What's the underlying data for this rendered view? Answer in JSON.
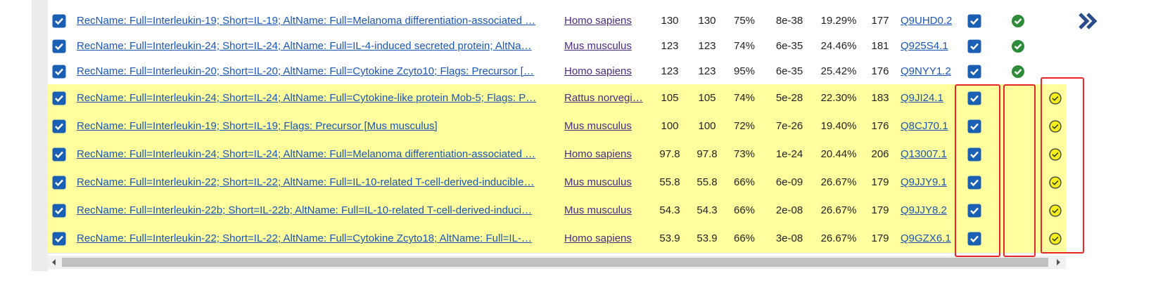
{
  "table": {
    "rows": [
      {
        "description": "RecName: Full=Interleukin-19; Short=IL-19; AltName: Full=Melanoma differentiation-associated …",
        "species": "Homo sapiens",
        "max_score": "130",
        "total_score": "130",
        "query_cover": "75%",
        "e_value": "8e-38",
        "per_ident": "19.29%",
        "acc_len": "177",
        "accession": "Q9UHD0.2",
        "highlighted": false
      },
      {
        "description": "RecName: Full=Interleukin-24; Short=IL-24; AltName: Full=IL-4-induced secreted protein; AltNa…",
        "species": "Mus musculus",
        "max_score": "123",
        "total_score": "123",
        "query_cover": "74%",
        "e_value": "6e-35",
        "per_ident": "24.46%",
        "acc_len": "181",
        "accession": "Q925S4.1",
        "highlighted": false
      },
      {
        "description": "RecName: Full=Interleukin-20; Short=IL-20; AltName: Full=Cytokine Zcyto10; Flags: Precursor […",
        "species": "Homo sapiens",
        "max_score": "123",
        "total_score": "123",
        "query_cover": "95%",
        "e_value": "6e-35",
        "per_ident": "25.42%",
        "acc_len": "176",
        "accession": "Q9NYY1.2",
        "highlighted": false
      },
      {
        "description": "RecName: Full=Interleukin-24; Short=IL-24; AltName: Full=Cytokine-like protein Mob-5; Flags: P…",
        "species": "Rattus norvegi…",
        "max_score": "105",
        "total_score": "105",
        "query_cover": "74%",
        "e_value": "5e-28",
        "per_ident": "22.30%",
        "acc_len": "183",
        "accession": "Q9JI24.1",
        "highlighted": true
      },
      {
        "description": "RecName: Full=Interleukin-19; Short=IL-19; Flags: Precursor [Mus musculus]",
        "species": "Mus musculus",
        "max_score": "100",
        "total_score": "100",
        "query_cover": "72%",
        "e_value": "7e-26",
        "per_ident": "19.40%",
        "acc_len": "176",
        "accession": "Q8CJ70.1",
        "highlighted": true
      },
      {
        "description": "RecName: Full=Interleukin-24; Short=IL-24; AltName: Full=Melanoma differentiation-associated …",
        "species": "Homo sapiens",
        "max_score": "97.8",
        "total_score": "97.8",
        "query_cover": "73%",
        "e_value": "1e-24",
        "per_ident": "20.44%",
        "acc_len": "206",
        "accession": "Q13007.1",
        "highlighted": true
      },
      {
        "description": "RecName: Full=Interleukin-22; Short=IL-22; AltName: Full=IL-10-related T-cell-derived-inducible…",
        "species": "Mus musculus",
        "max_score": "55.8",
        "total_score": "55.8",
        "query_cover": "66%",
        "e_value": "6e-09",
        "per_ident": "26.67%",
        "acc_len": "179",
        "accession": "Q9JJY9.1",
        "highlighted": true
      },
      {
        "description": "RecName: Full=Interleukin-22b; Short=IL-22b; AltName: Full=IL-10-related T-cell-derived-induci…",
        "species": "Mus musculus",
        "max_score": "54.3",
        "total_score": "54.3",
        "query_cover": "66%",
        "e_value": "2e-08",
        "per_ident": "26.67%",
        "acc_len": "179",
        "accession": "Q9JJY8.2",
        "highlighted": true
      },
      {
        "description": "RecName: Full=Interleukin-22; Short=IL-22; AltName: Full=Cytokine Zcyto18; AltName: Full=IL-…",
        "species": "Homo sapiens",
        "max_score": "53.9",
        "total_score": "53.9",
        "query_cover": "66%",
        "e_value": "3e-08",
        "per_ident": "26.67%",
        "acc_len": "179",
        "accession": "Q9GZX6.1",
        "highlighted": true
      }
    ]
  }
}
